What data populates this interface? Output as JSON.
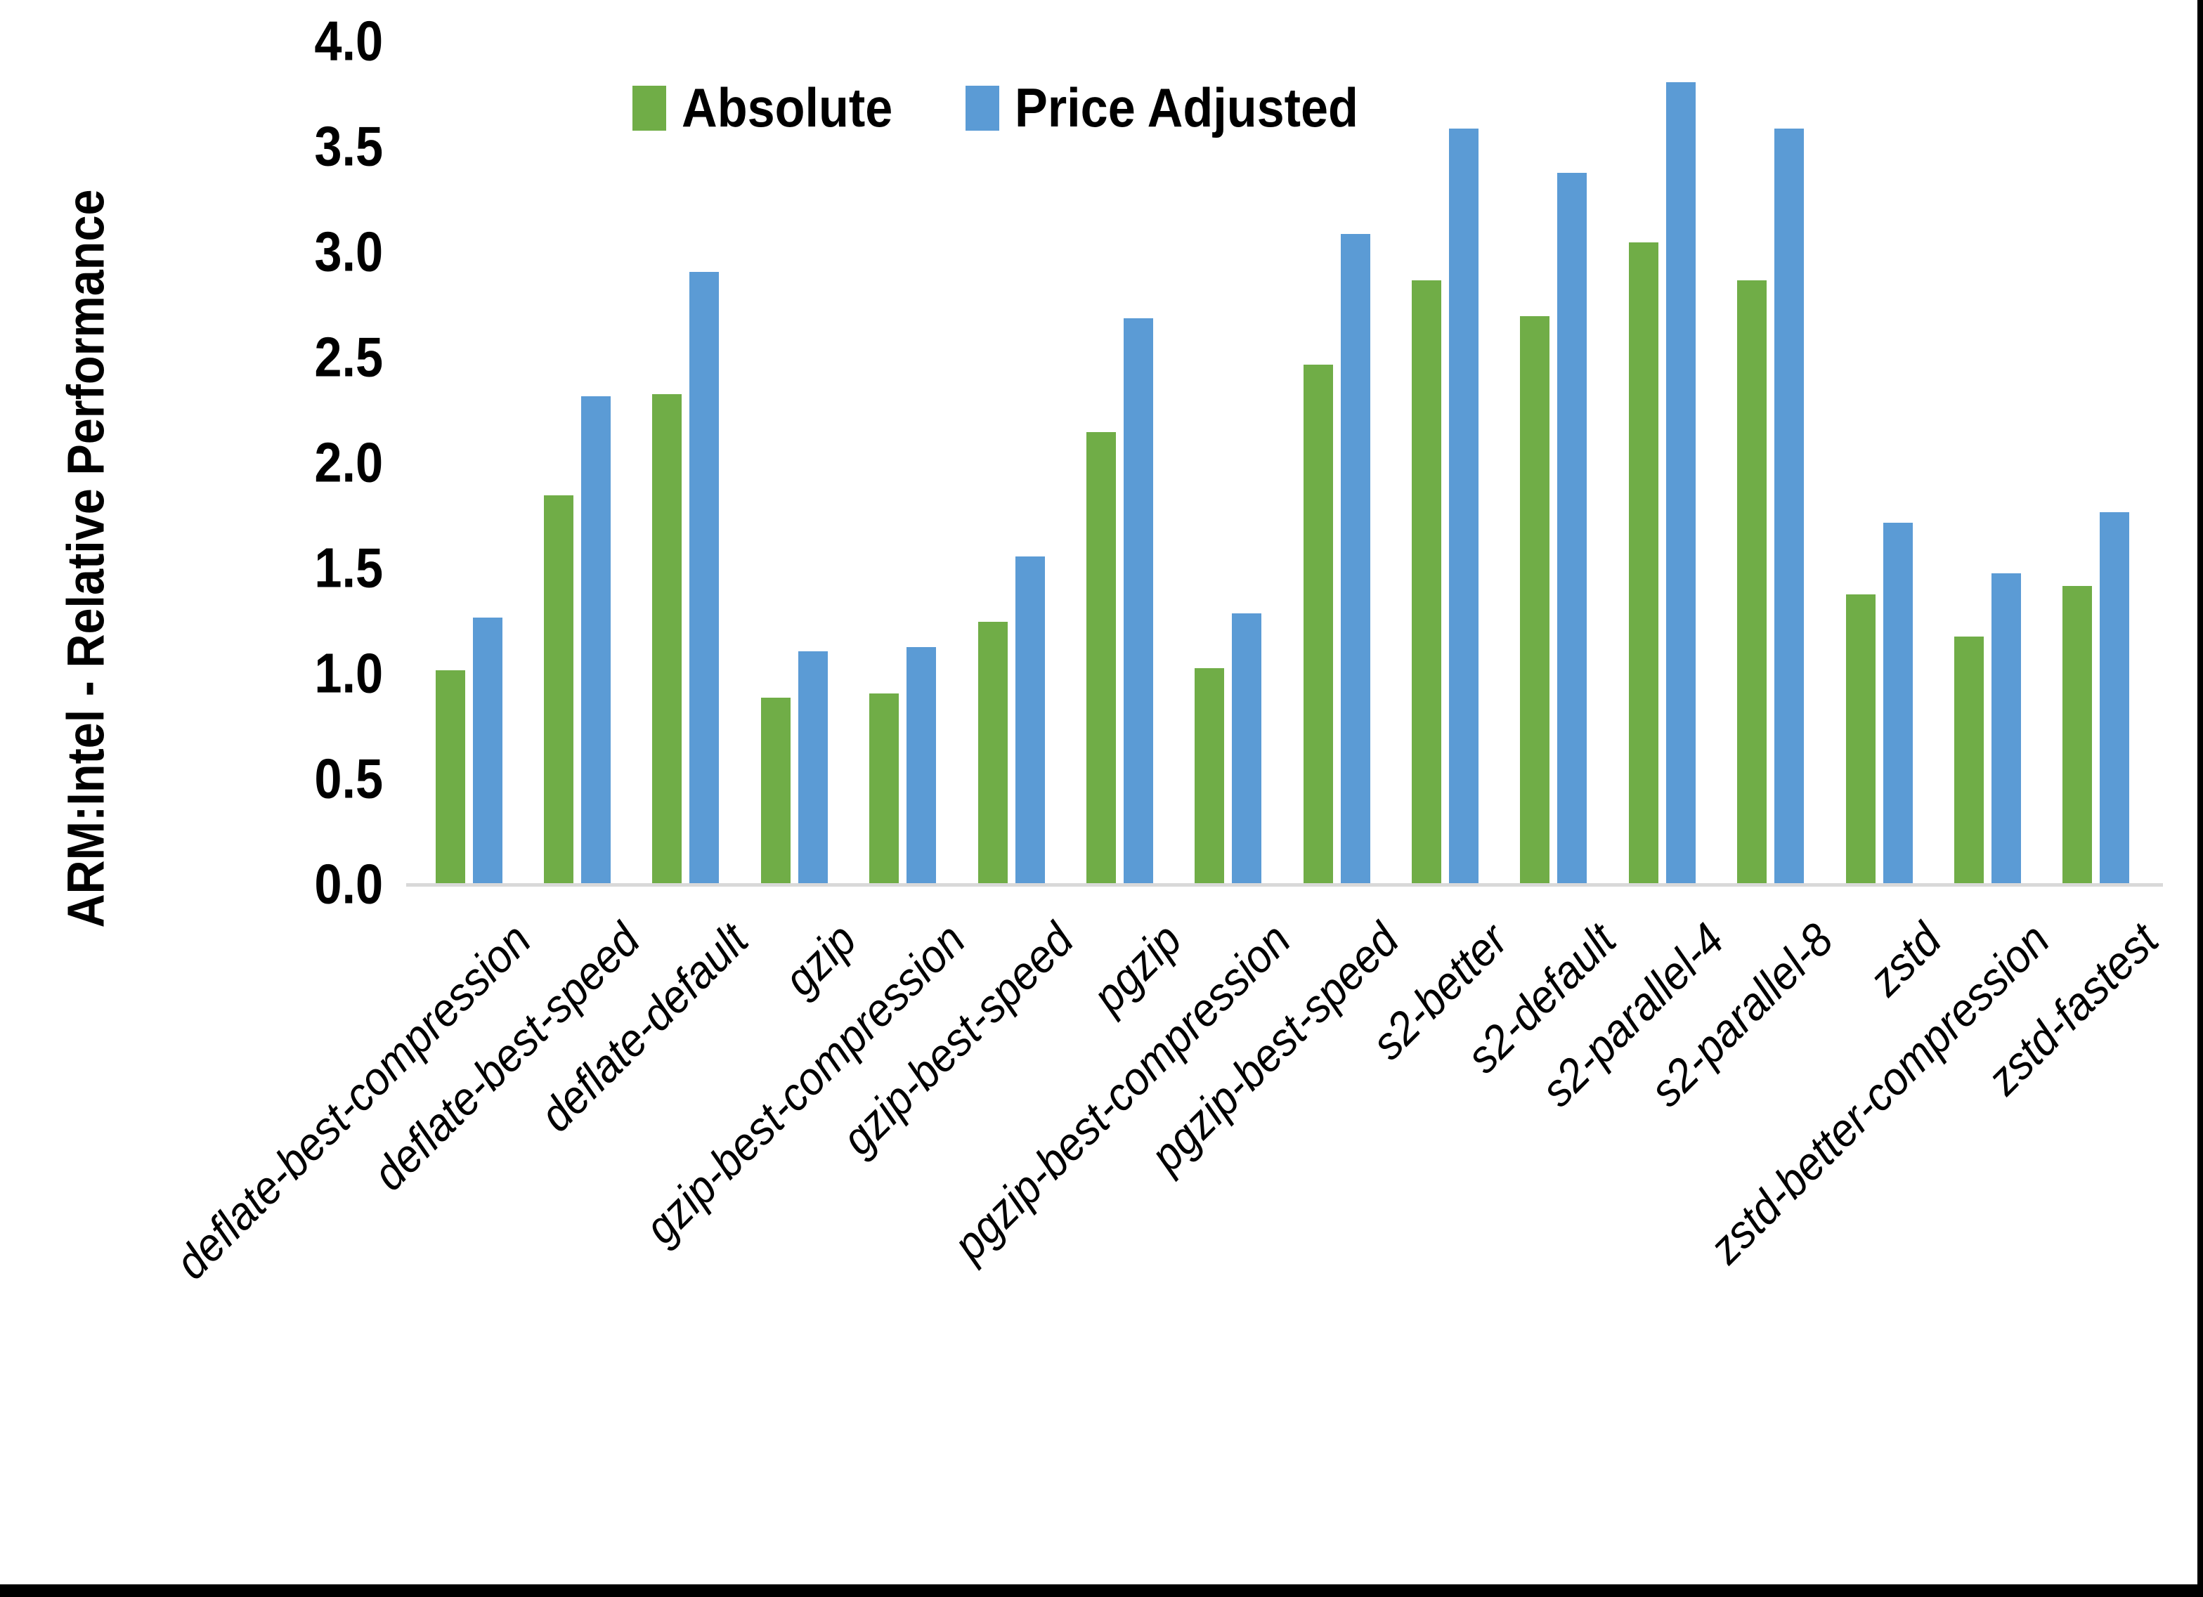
{
  "chart_data": {
    "type": "bar",
    "title": "",
    "xlabel": "",
    "ylabel": "ARM:Intel - Relative Performance",
    "ylim": [
      0.0,
      4.0
    ],
    "ytick_labels": [
      "0.0",
      "0.5",
      "1.0",
      "1.5",
      "2.0",
      "2.5",
      "3.0",
      "3.5",
      "4.0"
    ],
    "grid": false,
    "legend_position": "top",
    "categories": [
      "deflate-best-compression",
      "deflate-best-speed",
      "deflate-default",
      "gzip",
      "gzip-best-compression",
      "gzip-best-speed",
      "pgzip",
      "pgzip-best-compression",
      "pgzip-best-speed",
      "s2-better",
      "s2-default",
      "s2-parallel-4",
      "s2-parallel-8",
      "zstd",
      "zstd-better-compression",
      "zstd-fastest"
    ],
    "series": [
      {
        "name": "Absolute",
        "color": "#70AD47",
        "values": [
          1.02,
          1.85,
          2.33,
          0.89,
          0.91,
          1.25,
          2.15,
          1.03,
          2.47,
          2.87,
          2.7,
          3.05,
          2.87,
          1.38,
          1.18,
          1.42
        ]
      },
      {
        "name": "Price Adjusted",
        "color": "#5B9BD5",
        "values": [
          1.27,
          2.32,
          2.91,
          1.11,
          1.13,
          1.56,
          2.69,
          1.29,
          3.09,
          3.59,
          3.38,
          3.81,
          3.59,
          1.72,
          1.48,
          1.77
        ]
      }
    ]
  },
  "colors": {
    "background": "#FFFFFF",
    "text": "#000000",
    "axis_line": "#D9D9D9",
    "border_strip": "#000000"
  }
}
